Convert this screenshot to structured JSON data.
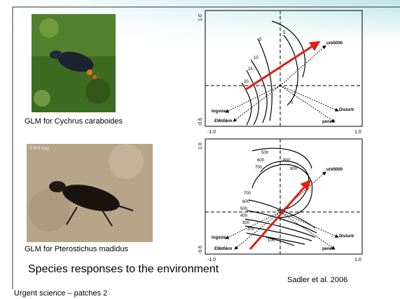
{
  "slide": {
    "title": "Species responses to the environment",
    "citation": "Sadler et al. 2006",
    "footer": "Urgent science – patches 2",
    "panels": [
      {
        "caption": "GLM for Cychrus caraboides",
        "plot": {
          "y_top": "1.0",
          "y_bottom": "-0.6",
          "x_left": "-1.0",
          "x_right": "1.0",
          "contour_labels": [
            "5",
            "5",
            "10",
            "15",
            "20",
            "0"
          ],
          "vectors": [
            "urb5000",
            "logsize",
            "EWd5km",
            "Disturb",
            "penet"
          ]
        }
      },
      {
        "caption": "GLM for Pterostichus madidus",
        "photo_credit": "© R E Key",
        "plot": {
          "y_top": "1.0",
          "y_bottom": "-0.6",
          "x_left": "-1.0",
          "x_right": "1.0",
          "contour_labels": [
            "500",
            "600",
            "700",
            "800",
            "900",
            "700",
            "600",
            "500",
            "400",
            "300",
            "200",
            "100"
          ],
          "vectors": [
            "urb5000",
            "logsize",
            "EWd5km",
            "Disturb",
            "penet"
          ]
        }
      }
    ]
  }
}
